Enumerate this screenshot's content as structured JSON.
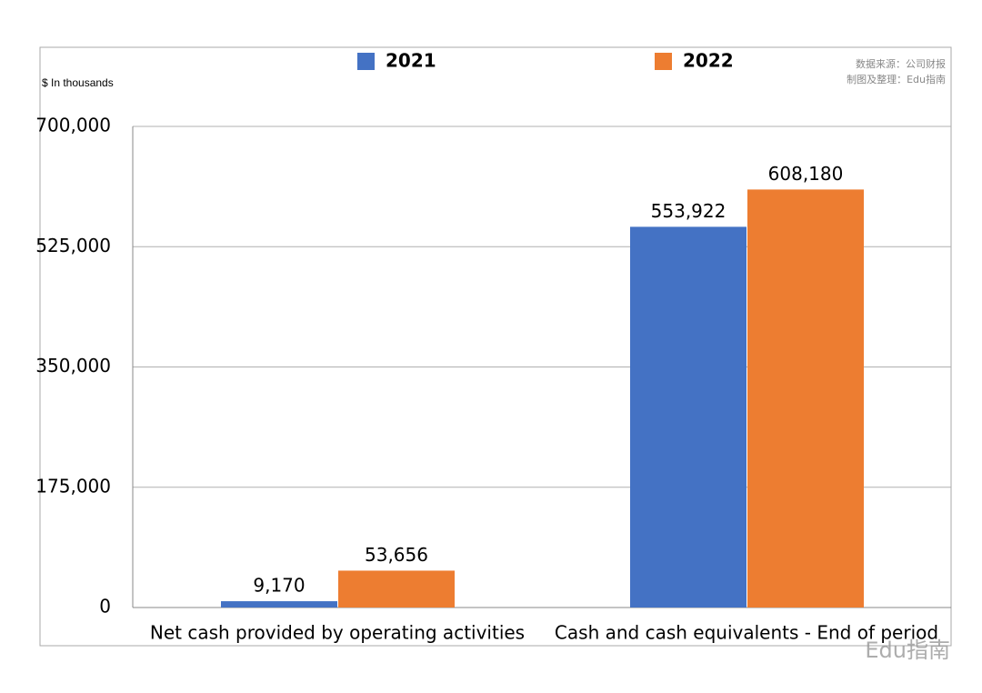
{
  "chart_data": {
    "type": "bar",
    "y_axis_label": "$ In thousands",
    "source_note": [
      "数据来源：公司财报",
      "制图及整理：Edu指南"
    ],
    "watermark": "Edu指南",
    "categories": [
      "Net cash provided by operating activities",
      "Cash and cash equivalents - End of period"
    ],
    "series": [
      {
        "name": "2021",
        "color": "#4472c4",
        "values": [
          9170,
          553922
        ],
        "value_labels": [
          "9,170",
          "553,922"
        ]
      },
      {
        "name": "2022",
        "color": "#ed7d31",
        "values": [
          53656,
          608180
        ],
        "value_labels": [
          "53,656",
          "608,180"
        ]
      }
    ],
    "ylim": [
      0,
      700000
    ],
    "yticks": [
      0,
      {
        "value": 175000,
        "label": "175,000"
      },
      {
        "value": 350000,
        "label": "350,000"
      },
      {
        "value": 525000,
        "label": "525,000"
      },
      {
        "value": 700000,
        "label": "700,000"
      }
    ],
    "grid": true,
    "legend": "top"
  }
}
